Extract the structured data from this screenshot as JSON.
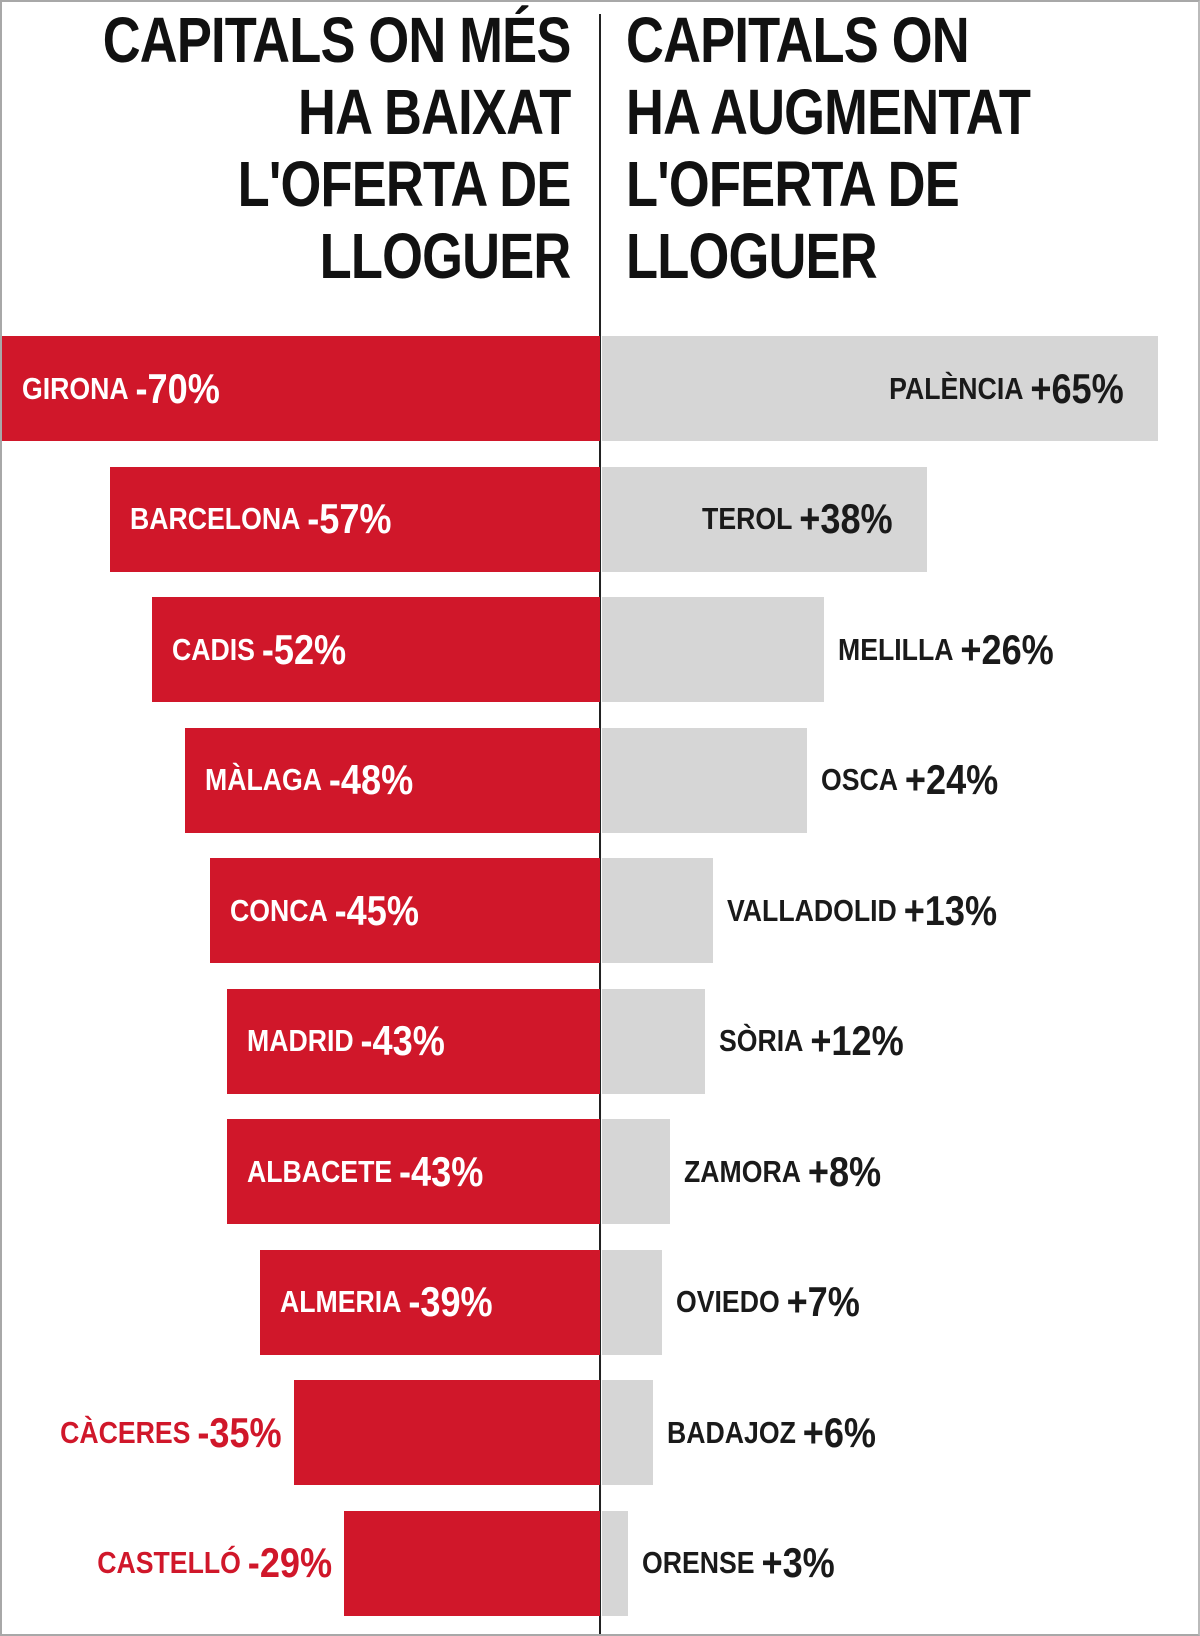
{
  "chart_data": {
    "type": "bar",
    "title_left": [
      "CAPITALS ON MÉS",
      "HA BAIXAT",
      "L'OFERTA DE",
      "LLOGUER"
    ],
    "title_right": [
      "CAPITALS ON",
      "HA AUGMENTAT",
      "L'OFERTA DE",
      "LLOGUER"
    ],
    "colors": {
      "decrease": "#d0172a",
      "increase": "#d6d6d6"
    },
    "decrease": [
      {
        "name": "GIRONA",
        "label": "-70%",
        "value": -70
      },
      {
        "name": "BARCELONA",
        "label": "-57%",
        "value": -57
      },
      {
        "name": "CADIS",
        "label": "-52%",
        "value": -52
      },
      {
        "name": "MÀLAGA",
        "label": "-48%",
        "value": -48
      },
      {
        "name": "CONCA",
        "label": "-45%",
        "value": -45
      },
      {
        "name": "MADRID",
        "label": "-43%",
        "value": -43
      },
      {
        "name": "ALBACETE",
        "label": "-43%",
        "value": -43
      },
      {
        "name": "ALMERIA",
        "label": "-39%",
        "value": -39
      },
      {
        "name": "CÀCERES",
        "label": "-35%",
        "value": -35
      },
      {
        "name": "CASTELLÓ",
        "label": "-29%",
        "value": -29
      }
    ],
    "increase": [
      {
        "name": "PALÈNCIA",
        "label": "+65%",
        "value": 65
      },
      {
        "name": "TEROL",
        "label": "+38%",
        "value": 38
      },
      {
        "name": "MELILLA",
        "label": "+26%",
        "value": 26
      },
      {
        "name": "OSCA",
        "label": "+24%",
        "value": 24
      },
      {
        "name": "VALLADOLID",
        "label": "+13%",
        "value": 13
      },
      {
        "name": "SÒRIA",
        "label": "+12%",
        "value": 12
      },
      {
        "name": "ZAMORA",
        "label": "+8%",
        "value": 8
      },
      {
        "name": "OVIEDO",
        "label": "+7%",
        "value": 7
      },
      {
        "name": "BADAJOZ",
        "label": "+6%",
        "value": 6
      },
      {
        "name": "ORENSE",
        "label": "+3%",
        "value": 3
      }
    ]
  }
}
